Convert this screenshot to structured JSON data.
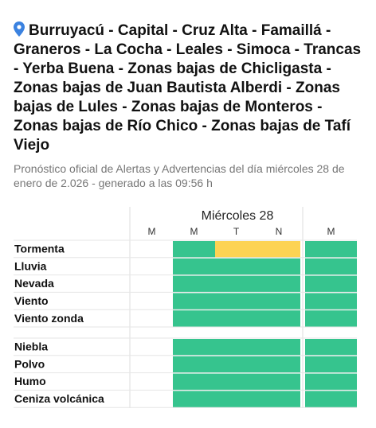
{
  "header": {
    "title": "Burruyacú - Capital - Cruz Alta - Famaillá - Graneros - La Cocha - Leales - Simoca - Trancas - Yerba Buena - Zonas bajas de Chicligasta - Zonas bajas de Juan Bautista Alberdi - Zonas bajas de Lules - Zonas bajas de Monteros - Zonas bajas de Río Chico - Zonas bajas de Tafí Viejo",
    "subtitle": "Pronóstico oficial de Alertas y Advertencias del día miércoles 28 de enero de 2.026 - generado a las 09:56 h"
  },
  "table": {
    "day": "Miércoles 28",
    "columns": [
      "M",
      "M",
      "T",
      "N",
      "M"
    ],
    "groups": [
      {
        "rows": [
          {
            "label": "Tormenta",
            "colors": [
              "#ffffff",
              "#36c48e",
              "#fdd353",
              "#fdd353",
              "#36c48e"
            ]
          },
          {
            "label": "Lluvia",
            "colors": [
              "#ffffff",
              "#36c48e",
              "#36c48e",
              "#36c48e",
              "#36c48e"
            ]
          },
          {
            "label": "Nevada",
            "colors": [
              "#ffffff",
              "#36c48e",
              "#36c48e",
              "#36c48e",
              "#36c48e"
            ]
          },
          {
            "label": "Viento",
            "colors": [
              "#ffffff",
              "#36c48e",
              "#36c48e",
              "#36c48e",
              "#36c48e"
            ]
          },
          {
            "label": "Viento zonda",
            "colors": [
              "#ffffff",
              "#36c48e",
              "#36c48e",
              "#36c48e",
              "#36c48e"
            ]
          }
        ]
      },
      {
        "rows": [
          {
            "label": "Niebla",
            "colors": [
              "#ffffff",
              "#36c48e",
              "#36c48e",
              "#36c48e",
              "#36c48e"
            ]
          },
          {
            "label": "Polvo",
            "colors": [
              "#ffffff",
              "#36c48e",
              "#36c48e",
              "#36c48e",
              "#36c48e"
            ]
          },
          {
            "label": "Humo",
            "colors": [
              "#ffffff",
              "#36c48e",
              "#36c48e",
              "#36c48e",
              "#36c48e"
            ]
          },
          {
            "label": "Ceniza volcánica",
            "colors": [
              "#ffffff",
              "#36c48e",
              "#36c48e",
              "#36c48e",
              "#36c48e"
            ]
          }
        ]
      }
    ]
  }
}
